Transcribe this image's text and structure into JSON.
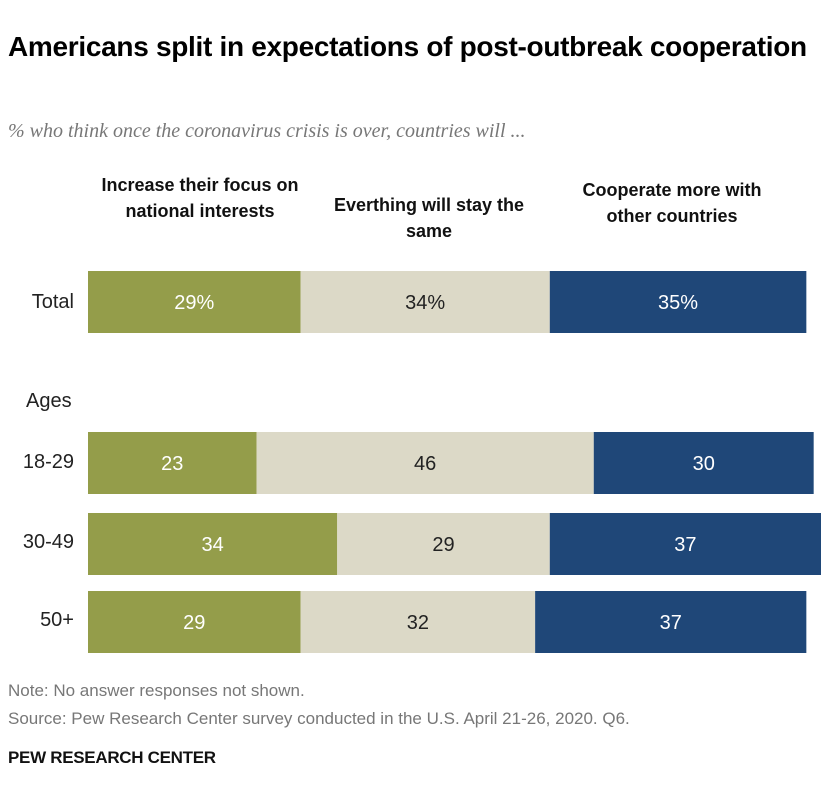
{
  "title": "Americans split in expectations of post-outbreak cooperation",
  "subtitle": "% who think once the coronavirus crisis is over, countries will ...",
  "chart_data": {
    "type": "bar",
    "orientation": "horizontal-stacked",
    "categories": [
      "Total",
      "18-29",
      "30-49",
      "50+"
    ],
    "group_label": "Ages",
    "series": [
      {
        "name": "Increase their focus on national interests",
        "values": [
          29,
          23,
          34,
          29
        ],
        "labels": [
          "29%",
          "23",
          "34",
          "29"
        ],
        "color": "#949d4a"
      },
      {
        "name": "Everthing will stay the same",
        "values": [
          34,
          46,
          29,
          32
        ],
        "labels": [
          "34%",
          "46",
          "29",
          "32"
        ],
        "color": "#dcd9c7"
      },
      {
        "name": "Cooperate more with other countries",
        "values": [
          35,
          30,
          37,
          37
        ],
        "labels": [
          "35%",
          "30",
          "37",
          "37"
        ],
        "color": "#1f4778"
      }
    ]
  },
  "notes": {
    "note": "Note: No answer responses not shown.",
    "source": "Source: Pew Research Center survey conducted in the U.S. April 21-26, 2020. Q6."
  },
  "brand": "PEW RESEARCH CENTER"
}
